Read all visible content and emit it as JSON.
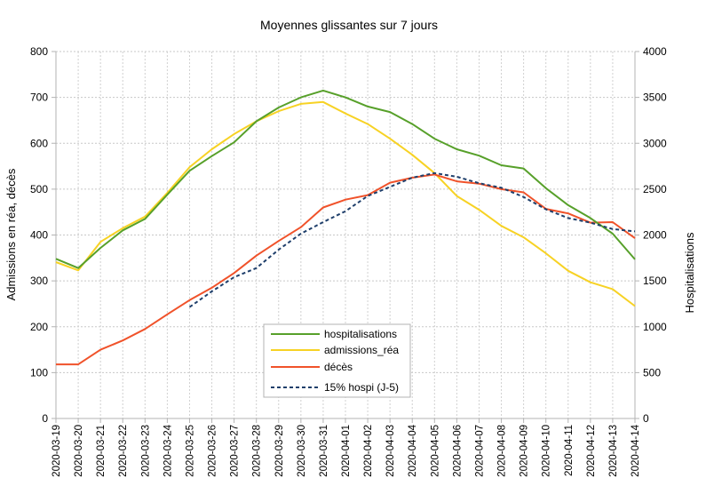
{
  "chart_data": {
    "type": "line",
    "title": "Moyennes glissantes sur 7 jours",
    "ylabel": "Admissions en réa, décès",
    "y2label": "Hospitalisations",
    "ylim": [
      0,
      800
    ],
    "y2lim": [
      0,
      4000
    ],
    "yticks": [
      "0",
      "100",
      "200",
      "300",
      "400",
      "500",
      "600",
      "700",
      "800"
    ],
    "y2ticks": [
      "0",
      "500",
      "1000",
      "1500",
      "2000",
      "2500",
      "3000",
      "3500",
      "4000"
    ],
    "grid": true,
    "legend_position": "center-bottom",
    "categories": [
      "2020-03-19",
      "2020-03-20",
      "2020-03-21",
      "2020-03-22",
      "2020-03-23",
      "2020-03-24",
      "2020-03-25",
      "2020-03-26",
      "2020-03-27",
      "2020-03-28",
      "2020-03-29",
      "2020-03-30",
      "2020-03-31",
      "2020-04-01",
      "2020-04-02",
      "2020-04-03",
      "2020-04-04",
      "2020-04-05",
      "2020-04-06",
      "2020-04-07",
      "2020-04-08",
      "2020-04-09",
      "2020-04-10",
      "2020-04-11",
      "2020-04-12",
      "2020-04-13",
      "2020-04-14"
    ],
    "series": [
      {
        "name": "hospitalisations",
        "axis": "right",
        "color": "#57a02a",
        "dashed": false,
        "values": [
          1740,
          1640,
          1860,
          2050,
          2175,
          2440,
          2700,
          2860,
          3010,
          3240,
          3390,
          3500,
          3575,
          3500,
          3400,
          3340,
          3210,
          3050,
          2935,
          2865,
          2760,
          2725,
          2510,
          2325,
          2185,
          2015,
          1735
        ]
      },
      {
        "name": "admissions_réa",
        "axis": "left",
        "color": "#f7d224",
        "dashed": false,
        "values": [
          341,
          323,
          385,
          415,
          440,
          492,
          548,
          587,
          620,
          648,
          670,
          686,
          690,
          665,
          642,
          610,
          575,
          535,
          485,
          455,
          420,
          395,
          360,
          322,
          297,
          282,
          245
        ]
      },
      {
        "name": "décès",
        "axis": "left",
        "color": "#f0522a",
        "dashed": false,
        "values": [
          118,
          118,
          150,
          170,
          195,
          227,
          258,
          285,
          317,
          355,
          387,
          417,
          460,
          477,
          487,
          514,
          525,
          532,
          517,
          512,
          500,
          493,
          457,
          447,
          427,
          428,
          393
        ]
      },
      {
        "name": "15% hospi (J-5)",
        "axis": "left",
        "color": "#1f3f6b",
        "dashed": true,
        "values": [
          null,
          null,
          null,
          null,
          null,
          null,
          243,
          277,
          308,
          328,
          368,
          403,
          428,
          452,
          485,
          505,
          525,
          535,
          527,
          513,
          503,
          483,
          456,
          437,
          427,
          413,
          408
        ]
      }
    ]
  }
}
